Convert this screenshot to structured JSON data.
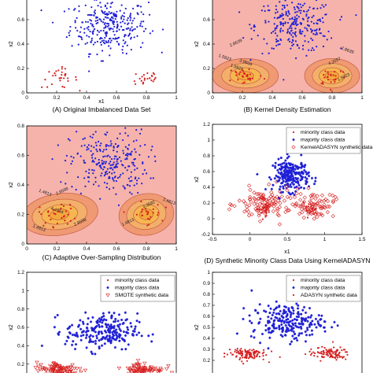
{
  "chart_data": [
    {
      "panel": "A",
      "type": "scatter",
      "caption": "(A)  Original Imbalanced Data Set",
      "xlabel": "x1",
      "ylabel": "x2",
      "xlim": [
        0,
        1
      ],
      "ylim": [
        0,
        0.8
      ],
      "x_ticks": [
        "0",
        "0.2",
        "0.4",
        "0.6",
        "0.8",
        "1"
      ],
      "y_ticks": [
        "0",
        "0.2",
        "0.4",
        "0.6",
        "0.8"
      ],
      "background": "#ffffff",
      "series": [
        {
          "name": "majority class data",
          "marker": "dot",
          "color": "#1f1fd6",
          "cluster": {
            "center": [
              0.55,
              0.55
            ],
            "spread": [
              0.13,
              0.11
            ],
            "count": 300
          }
        },
        {
          "name": "minority class data",
          "marker": "dot",
          "color": "#d62020",
          "clusters": [
            {
              "center": [
                0.22,
                0.12
              ],
              "spread": [
                0.06,
                0.04
              ],
              "count": 30
            },
            {
              "center": [
                0.8,
                0.12
              ],
              "spread": [
                0.05,
                0.04
              ],
              "count": 25
            }
          ]
        }
      ]
    },
    {
      "panel": "B",
      "type": "contour",
      "caption": "(B) Kernel Density Estimation",
      "xlabel": "x1",
      "ylabel": "x2",
      "xlim": [
        0,
        1
      ],
      "ylim": [
        0,
        0.8
      ],
      "x_ticks": [
        "0",
        "0.2",
        "0.4",
        "0.6",
        "0.8",
        "1"
      ],
      "y_ticks": [
        "0",
        "0.2",
        "0.4",
        "0.6",
        "0.8"
      ],
      "background": "#f6b3ab",
      "contour_labels": [
        "1.5923",
        "2.8639",
        "1.5923",
        "4.2057",
        "2.8639",
        "1.5923",
        "3.9604"
      ],
      "series": [
        {
          "name": "majority class data",
          "marker": "dot",
          "color": "#1f1fd6",
          "cluster": {
            "center": [
              0.55,
              0.55
            ],
            "spread": [
              0.13,
              0.11
            ],
            "count": 260
          }
        },
        {
          "name": "minority class data",
          "marker": "dot",
          "color": "#d62020",
          "clusters": [
            {
              "center": [
                0.22,
                0.14
              ],
              "spread": [
                0.06,
                0.04
              ],
              "count": 30
            },
            {
              "center": [
                0.8,
                0.14
              ],
              "spread": [
                0.05,
                0.04
              ],
              "count": 25
            }
          ]
        }
      ]
    },
    {
      "panel": "C",
      "type": "contour",
      "caption": "(C) Adaptive Over-Sampling Distribution",
      "ylabel": "x2",
      "xlim": [
        0,
        1
      ],
      "ylim": [
        0,
        0.8
      ],
      "x_ticks": [
        "0",
        "0.2",
        "0.4",
        "0.6",
        "0.8",
        "1"
      ],
      "y_ticks": [
        "0",
        "0.2",
        "0.4",
        "0.6",
        "0.8"
      ],
      "background": "#f6b3ab",
      "contour_labels": [
        "4.4384",
        "2.9598",
        "1.4813",
        "3.3592",
        "1.4813",
        "2.9598",
        "1.4813",
        "1.4813"
      ],
      "series": [
        {
          "name": "majority class data",
          "marker": "dot",
          "color": "#1f1fd6",
          "cluster": {
            "center": [
              0.55,
              0.55
            ],
            "spread": [
              0.13,
              0.11
            ],
            "count": 260
          }
        },
        {
          "name": "minority class data",
          "marker": "dot",
          "color": "#d62020",
          "clusters": [
            {
              "center": [
                0.22,
                0.2
              ],
              "spread": [
                0.07,
                0.04
              ],
              "count": 30
            },
            {
              "center": [
                0.8,
                0.2
              ],
              "spread": [
                0.05,
                0.04
              ],
              "count": 25
            }
          ]
        }
      ]
    },
    {
      "panel": "D",
      "type": "scatter",
      "caption": "(D) Synthetic Minority Class Data Using KernelADASYN",
      "xlabel": "x1",
      "ylabel": "x2",
      "xlim": [
        -0.5,
        1.5
      ],
      "ylim": [
        -0.2,
        1.2
      ],
      "x_ticks": [
        "-0.5",
        "0",
        "0.5",
        "1",
        "1.5"
      ],
      "y_ticks": [
        "-0.2",
        "0",
        "0.2",
        "0.4",
        "0.6",
        "0.8",
        "1",
        "1.2"
      ],
      "legend_position": "top-right",
      "legend": [
        "minority class data",
        "majority class data",
        "KernelADASYN synthetic data"
      ],
      "series": [
        {
          "name": "minority class data",
          "marker": "dot",
          "color": "#d62020",
          "clusters": [
            {
              "center": [
                0.2,
                0.12
              ],
              "spread": [
                0.06,
                0.04
              ],
              "count": 25
            },
            {
              "center": [
                0.8,
                0.12
              ],
              "spread": [
                0.05,
                0.04
              ],
              "count": 20
            }
          ]
        },
        {
          "name": "majority class data",
          "marker": "star",
          "color": "#1f1fd6",
          "cluster": {
            "center": [
              0.55,
              0.55
            ],
            "spread": [
              0.12,
              0.1
            ],
            "count": 230
          }
        },
        {
          "name": "KernelADASYN synthetic data",
          "marker": "diamond",
          "color": "#d62020",
          "clusters": [
            {
              "center": [
                0.2,
                0.18
              ],
              "spread": [
                0.18,
                0.1
              ],
              "count": 110
            },
            {
              "center": [
                0.85,
                0.18
              ],
              "spread": [
                0.14,
                0.08
              ],
              "count": 80
            }
          ]
        }
      ]
    },
    {
      "panel": "E",
      "type": "scatter",
      "ylabel": "x2",
      "xlim": [
        0,
        1
      ],
      "ylim": [
        0,
        1.2
      ],
      "y_ticks": [
        "0.2",
        "0.4",
        "0.6",
        "0.8",
        "1",
        "1.2"
      ],
      "legend_position": "top-right",
      "legend": [
        "minority class data",
        "majority class data",
        "SMOTE synthetic data"
      ],
      "series": [
        {
          "name": "minority class data",
          "marker": "dot",
          "color": "#d62020",
          "clusters": [
            {
              "center": [
                0.22,
                0.14
              ],
              "spread": [
                0.05,
                0.03
              ],
              "count": 20
            },
            {
              "center": [
                0.78,
                0.14
              ],
              "spread": [
                0.05,
                0.03
              ],
              "count": 18
            }
          ]
        },
        {
          "name": "majority class data",
          "marker": "star",
          "color": "#1f1fd6",
          "cluster": {
            "center": [
              0.5,
              0.55
            ],
            "spread": [
              0.12,
              0.1
            ],
            "count": 230
          }
        },
        {
          "name": "SMOTE synthetic data",
          "marker": "triangle",
          "color": "#d62020",
          "clusters": [
            {
              "center": [
                0.22,
                0.14
              ],
              "spread": [
                0.08,
                0.04
              ],
              "count": 90
            },
            {
              "center": [
                0.78,
                0.14
              ],
              "spread": [
                0.07,
                0.04
              ],
              "count": 80
            }
          ]
        }
      ]
    },
    {
      "panel": "F",
      "type": "scatter",
      "ylabel": "x2",
      "xlim": [
        0,
        1
      ],
      "ylim": [
        0,
        1
      ],
      "y_ticks": [
        "0.2",
        "0.3",
        "0.4",
        "0.5",
        "0.6",
        "0.7",
        "0.8",
        "0.9",
        "1"
      ],
      "legend_position": "top-right",
      "legend": [
        "minority class data",
        "majority class data",
        "ADASYN synthetic data"
      ],
      "series": [
        {
          "name": "minority class data",
          "marker": "dot",
          "color": "#d62020",
          "clusters": [
            {
              "center": [
                0.22,
                0.26
              ],
              "spread": [
                0.05,
                0.025
              ],
              "count": 18
            },
            {
              "center": [
                0.78,
                0.26
              ],
              "spread": [
                0.05,
                0.025
              ],
              "count": 16
            }
          ]
        },
        {
          "name": "majority class data",
          "marker": "star",
          "color": "#1f1fd6",
          "cluster": {
            "center": [
              0.5,
              0.55
            ],
            "spread": [
              0.12,
              0.08
            ],
            "count": 230
          }
        },
        {
          "name": "ADASYN synthetic data",
          "marker": "dot",
          "color": "#d62020",
          "clusters": [
            {
              "center": [
                0.22,
                0.26
              ],
              "spread": [
                0.07,
                0.03
              ],
              "count": 90
            },
            {
              "center": [
                0.78,
                0.26
              ],
              "spread": [
                0.07,
                0.03
              ],
              "count": 80
            }
          ]
        }
      ]
    }
  ]
}
